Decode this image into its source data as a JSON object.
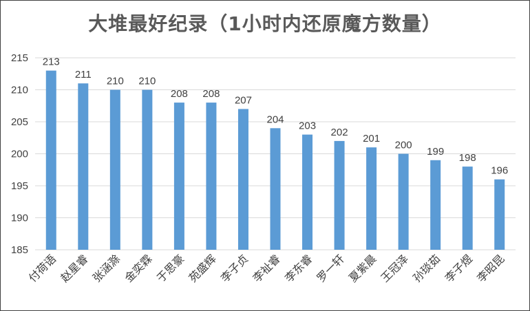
{
  "chart_data": {
    "type": "bar",
    "title": "大堆最好纪录（1小时内还原魔方数量）",
    "categories": [
      "付荷语",
      "赵星睿",
      "张涵滁",
      "金奕霖",
      "于思豪",
      "苑盛辉",
      "李子贞",
      "李祉睿",
      "李东睿",
      "罗一轩",
      "夏紫晨",
      "王冠泽",
      "孙琰茹",
      "李子煜",
      "李昭昆"
    ],
    "values": [
      213,
      211,
      210,
      210,
      208,
      208,
      207,
      204,
      203,
      202,
      201,
      200,
      199,
      198,
      196
    ],
    "ylim": [
      185,
      215
    ],
    "yticks": [
      "185",
      "190",
      "195",
      "200",
      "205",
      "210",
      "215"
    ],
    "grid": true,
    "legend": "none",
    "colors": {
      "bar": "#5b9bd5",
      "grid": "#d9d9d9",
      "text": "#404040"
    }
  }
}
